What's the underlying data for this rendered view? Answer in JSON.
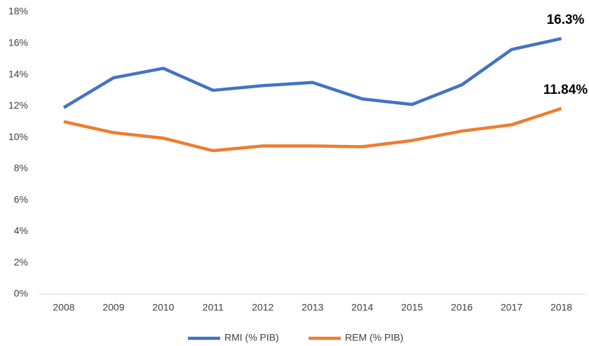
{
  "chart_data": {
    "type": "line",
    "categories": [
      "2008",
      "2009",
      "2010",
      "2011",
      "2012",
      "2013",
      "2014",
      "2015",
      "2016",
      "2017",
      "2018"
    ],
    "series": [
      {
        "name": "RMI (% PIB)",
        "color": "#4472c4",
        "values": [
          11.9,
          13.8,
          14.4,
          13.0,
          13.3,
          13.5,
          12.45,
          12.1,
          13.35,
          15.6,
          16.3
        ],
        "value_labels": [
          null,
          null,
          null,
          null,
          null,
          null,
          null,
          null,
          null,
          null,
          "16.3%"
        ]
      },
      {
        "name": "REM (% PIB)",
        "color": "#ed7d31",
        "values": [
          11.0,
          10.3,
          9.95,
          9.15,
          9.45,
          9.45,
          9.4,
          9.8,
          10.4,
          10.8,
          11.84
        ],
        "value_labels": [
          null,
          null,
          null,
          null,
          null,
          null,
          null,
          null,
          null,
          null,
          "11.84%"
        ]
      }
    ],
    "ylim": [
      0,
      18
    ],
    "yticks": [
      {
        "value": 0,
        "label": "0%"
      },
      {
        "value": 2,
        "label": "2%"
      },
      {
        "value": 4,
        "label": "4%"
      },
      {
        "value": 6,
        "label": "6%"
      },
      {
        "value": 8,
        "label": "8%"
      },
      {
        "value": 10,
        "label": "10%"
      },
      {
        "value": 12,
        "label": "12%"
      },
      {
        "value": 14,
        "label": "14%"
      },
      {
        "value": 16,
        "label": "16%"
      },
      {
        "value": 18,
        "label": "18%"
      }
    ],
    "grid": false,
    "legend": "bottom"
  }
}
